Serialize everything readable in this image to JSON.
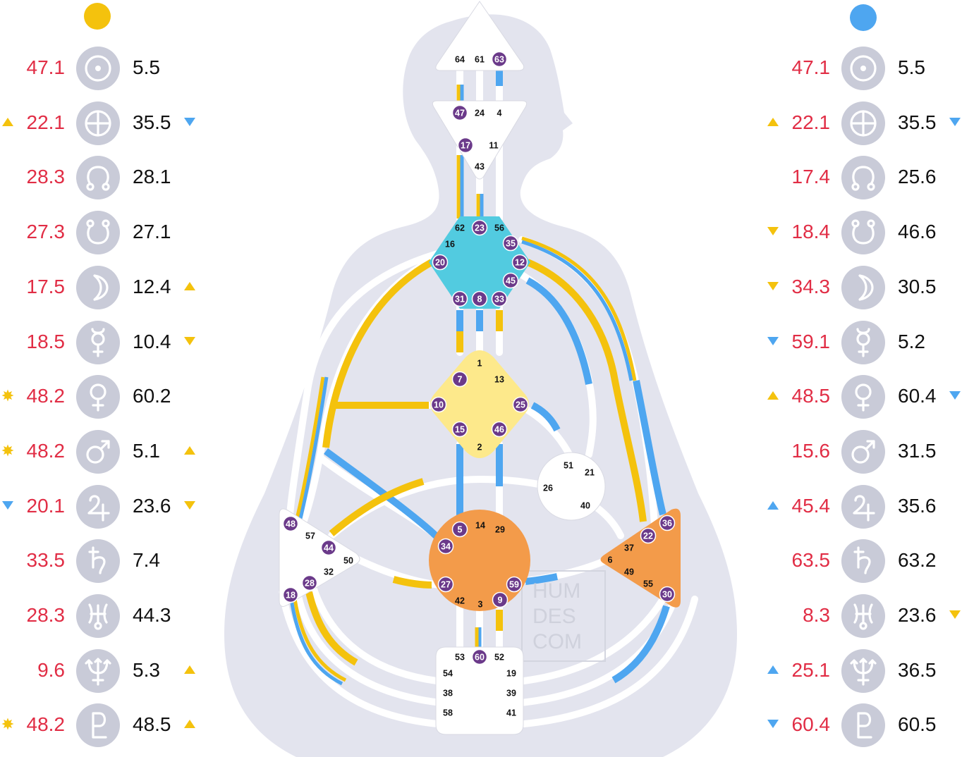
{
  "colors": {
    "design": "#f4c20d",
    "personality": "#4ea6f0",
    "design_value": "#e12d45",
    "personality_value": "#111111",
    "silhouette": "#e3e4ee",
    "icon_bg": "#c9cbd8",
    "gate_active": "#6b3a8a",
    "head_center": "#ffffff",
    "throat_center": "#52cbe0",
    "g_center": "#fde98b",
    "sacral_center": "#f39b4a",
    "spleen_center": "#ffffff",
    "solar_plexus_center": "#f39b4a",
    "root_center": "#ffffff"
  },
  "watermark": [
    "HUM",
    "DES",
    "COM"
  ],
  "left_column": {
    "rows": [
      {
        "planet": "sun-icon",
        "design": "47.1",
        "personality": "5.5",
        "left_mark": "",
        "right_mark": ""
      },
      {
        "planet": "earth-icon",
        "design": "22.1",
        "personality": "35.5",
        "left_mark": "up-yellow",
        "right_mark": "down-blue"
      },
      {
        "planet": "north-node-icon",
        "design": "28.3",
        "personality": "28.1",
        "left_mark": "",
        "right_mark": ""
      },
      {
        "planet": "south-node-icon",
        "design": "27.3",
        "personality": "27.1",
        "left_mark": "",
        "right_mark": ""
      },
      {
        "planet": "moon-icon",
        "design": "17.5",
        "personality": "12.4",
        "left_mark": "",
        "right_mark": "up-yellow"
      },
      {
        "planet": "mercury-icon",
        "design": "18.5",
        "personality": "10.4",
        "left_mark": "",
        "right_mark": "down-yellow"
      },
      {
        "planet": "venus-icon",
        "design": "48.2",
        "personality": "60.2",
        "left_mark": "star-yellow",
        "right_mark": ""
      },
      {
        "planet": "mars-icon",
        "design": "48.2",
        "personality": "5.1",
        "left_mark": "star-yellow",
        "right_mark": "up-yellow"
      },
      {
        "planet": "jupiter-icon",
        "design": "20.1",
        "personality": "23.6",
        "left_mark": "down-blue",
        "right_mark": "down-yellow"
      },
      {
        "planet": "saturn-icon",
        "design": "33.5",
        "personality": "7.4",
        "left_mark": "",
        "right_mark": ""
      },
      {
        "planet": "uranus-icon",
        "design": "28.3",
        "personality": "44.3",
        "left_mark": "",
        "right_mark": ""
      },
      {
        "planet": "neptune-icon",
        "design": "9.6",
        "personality": "5.3",
        "left_mark": "",
        "right_mark": "up-yellow"
      },
      {
        "planet": "pluto-icon",
        "design": "48.2",
        "personality": "48.5",
        "left_mark": "star-yellow",
        "right_mark": "up-yellow"
      }
    ]
  },
  "right_column": {
    "rows": [
      {
        "planet": "sun-icon",
        "design": "47.1",
        "personality": "5.5",
        "left_mark": "",
        "right_mark": ""
      },
      {
        "planet": "earth-icon",
        "design": "22.1",
        "personality": "35.5",
        "left_mark": "up-yellow",
        "right_mark": "down-blue"
      },
      {
        "planet": "north-node-icon",
        "design": "17.4",
        "personality": "25.6",
        "left_mark": "",
        "right_mark": ""
      },
      {
        "planet": "south-node-icon",
        "design": "18.4",
        "personality": "46.6",
        "left_mark": "down-yellow",
        "right_mark": ""
      },
      {
        "planet": "moon-icon",
        "design": "34.3",
        "personality": "30.5",
        "left_mark": "down-yellow",
        "right_mark": ""
      },
      {
        "planet": "mercury-icon",
        "design": "59.1",
        "personality": "5.2",
        "left_mark": "down-blue",
        "right_mark": ""
      },
      {
        "planet": "venus-icon",
        "design": "48.5",
        "personality": "60.4",
        "left_mark": "up-yellow",
        "right_mark": "down-blue"
      },
      {
        "planet": "mars-icon",
        "design": "15.6",
        "personality": "31.5",
        "left_mark": "",
        "right_mark": ""
      },
      {
        "planet": "jupiter-icon",
        "design": "45.4",
        "personality": "35.6",
        "left_mark": "up-blue",
        "right_mark": ""
      },
      {
        "planet": "saturn-icon",
        "design": "63.5",
        "personality": "63.2",
        "left_mark": "",
        "right_mark": ""
      },
      {
        "planet": "uranus-icon",
        "design": "8.3",
        "personality": "23.6",
        "left_mark": "",
        "right_mark": "down-yellow"
      },
      {
        "planet": "neptune-icon",
        "design": "25.1",
        "personality": "36.5",
        "left_mark": "up-blue",
        "right_mark": ""
      },
      {
        "planet": "pluto-icon",
        "design": "60.4",
        "personality": "60.5",
        "left_mark": "down-blue",
        "right_mark": ""
      }
    ]
  },
  "centers": [
    {
      "name": "head-center",
      "gates": [
        {
          "n": "64",
          "active": false
        },
        {
          "n": "61",
          "active": false
        },
        {
          "n": "63",
          "active": true
        }
      ]
    },
    {
      "name": "ajna-center",
      "gates": [
        {
          "n": "47",
          "active": true
        },
        {
          "n": "24",
          "active": false
        },
        {
          "n": "4",
          "active": false
        },
        {
          "n": "17",
          "active": true
        },
        {
          "n": "11",
          "active": false
        },
        {
          "n": "43",
          "active": false
        }
      ]
    },
    {
      "name": "throat-center",
      "gates": [
        {
          "n": "62",
          "active": false
        },
        {
          "n": "23",
          "active": true
        },
        {
          "n": "56",
          "active": false
        },
        {
          "n": "16",
          "active": false
        },
        {
          "n": "35",
          "active": true
        },
        {
          "n": "20",
          "active": true
        },
        {
          "n": "12",
          "active": true
        },
        {
          "n": "45",
          "active": true
        },
        {
          "n": "31",
          "active": true
        },
        {
          "n": "8",
          "active": true
        },
        {
          "n": "33",
          "active": true
        }
      ]
    },
    {
      "name": "g-center",
      "gates": [
        {
          "n": "1",
          "active": false
        },
        {
          "n": "7",
          "active": true
        },
        {
          "n": "13",
          "active": false
        },
        {
          "n": "10",
          "active": true
        },
        {
          "n": "25",
          "active": true
        },
        {
          "n": "15",
          "active": true
        },
        {
          "n": "46",
          "active": true
        },
        {
          "n": "2",
          "active": false
        }
      ]
    },
    {
      "name": "heart-center",
      "gates": [
        {
          "n": "51",
          "active": false
        },
        {
          "n": "21",
          "active": false
        },
        {
          "n": "26",
          "active": false
        },
        {
          "n": "40",
          "active": false
        }
      ]
    },
    {
      "name": "spleen-center",
      "gates": [
        {
          "n": "48",
          "active": true
        },
        {
          "n": "57",
          "active": false
        },
        {
          "n": "44",
          "active": true
        },
        {
          "n": "50",
          "active": false
        },
        {
          "n": "32",
          "active": false
        },
        {
          "n": "28",
          "active": true
        },
        {
          "n": "18",
          "active": true
        }
      ]
    },
    {
      "name": "sacral-center",
      "gates": [
        {
          "n": "5",
          "active": true
        },
        {
          "n": "14",
          "active": false
        },
        {
          "n": "29",
          "active": false
        },
        {
          "n": "34",
          "active": true
        },
        {
          "n": "27",
          "active": true
        },
        {
          "n": "59",
          "active": true
        },
        {
          "n": "42",
          "active": false
        },
        {
          "n": "3",
          "active": false
        },
        {
          "n": "9",
          "active": true
        }
      ]
    },
    {
      "name": "solar-plexus-center",
      "gates": [
        {
          "n": "36",
          "active": true
        },
        {
          "n": "22",
          "active": true
        },
        {
          "n": "37",
          "active": false
        },
        {
          "n": "6",
          "active": false
        },
        {
          "n": "49",
          "active": false
        },
        {
          "n": "55",
          "active": false
        },
        {
          "n": "30",
          "active": true
        }
      ]
    },
    {
      "name": "root-center",
      "gates": [
        {
          "n": "53",
          "active": false
        },
        {
          "n": "60",
          "active": true
        },
        {
          "n": "52",
          "active": false
        },
        {
          "n": "54",
          "active": false
        },
        {
          "n": "19",
          "active": false
        },
        {
          "n": "38",
          "active": false
        },
        {
          "n": "39",
          "active": false
        },
        {
          "n": "58",
          "active": false
        },
        {
          "n": "41",
          "active": false
        }
      ]
    }
  ]
}
